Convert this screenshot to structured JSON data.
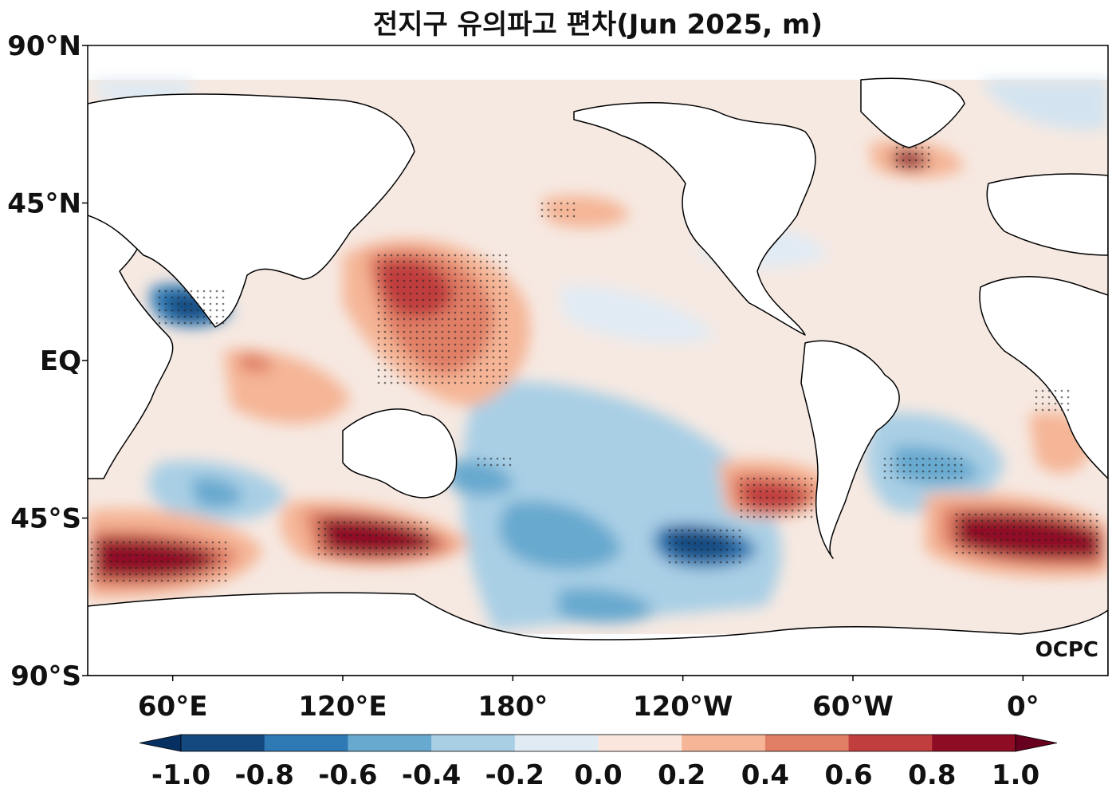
{
  "title": "전지구 유의파고 편차(Jun 2025, m)",
  "logo": "OCPC",
  "map": {
    "projection": "equirectangular, centered on 150°W (lon range 30°E to 390°E)",
    "lon_ticks": [
      {
        "lon": 60,
        "label": "60°E"
      },
      {
        "lon": 120,
        "label": "120°E"
      },
      {
        "lon": 180,
        "label": "180°"
      },
      {
        "lon": 240,
        "label": "120°W"
      },
      {
        "lon": 300,
        "label": "60°W"
      },
      {
        "lon": 360,
        "label": "0°"
      }
    ],
    "lat_ticks": [
      {
        "lat": 90,
        "label": "90°N"
      },
      {
        "lat": 45,
        "label": "45°N"
      },
      {
        "lat": 0,
        "label": "EQ"
      },
      {
        "lat": -45,
        "label": "45°S"
      },
      {
        "lat": -90,
        "label": "90°S"
      }
    ],
    "stippling": "significant anomaly regions"
  },
  "colorbar": {
    "ticks": [
      "-1.0",
      "-0.8",
      "-0.6",
      "-0.4",
      "-0.2",
      "0.0",
      "0.2",
      "0.4",
      "0.6",
      "0.8",
      "1.0"
    ],
    "colors": [
      "#053061",
      "#14497f",
      "#2f79b5",
      "#67a9cf",
      "#a9cfe5",
      "#e1ebf4",
      "#fae6dc",
      "#f5b596",
      "#e07f66",
      "#c03e3e",
      "#8f0c25",
      "#67001f"
    ],
    "extend": "both"
  }
}
